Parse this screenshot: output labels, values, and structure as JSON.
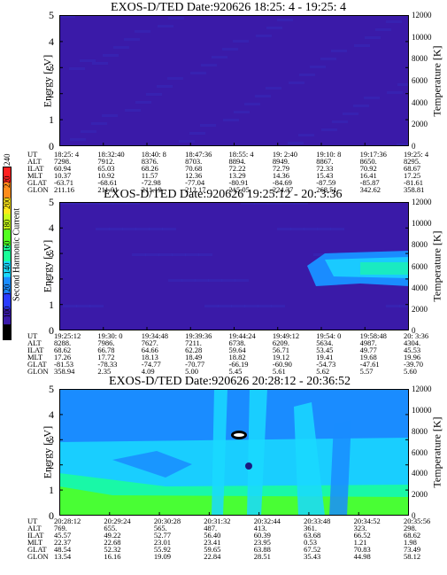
{
  "panels": [
    {
      "title": "EXOS-D/TED   Date:920626   18:25: 4 - 19:25: 4",
      "y_label": "Energy [eV]",
      "right_label": "Temperature [K]",
      "y_ticks": [
        "5",
        "4",
        "3",
        "2",
        "1",
        "0"
      ],
      "right_ticks": [
        "12000",
        "10000",
        "8000",
        "6000",
        "4000",
        "2000",
        "0"
      ],
      "rows": [
        {
          "label": "UT",
          "values": [
            "18:25: 4",
            "18:32:40",
            "18:40: 8",
            "18:47:36",
            "18:55: 4",
            "19: 2:40",
            "19:10: 8",
            "19:17:36",
            "19:25: 4"
          ]
        },
        {
          "label": "ALT",
          "values": [
            "7298.",
            "7912.",
            "8376.",
            "8703.",
            "8894.",
            "8949.",
            "8867.",
            "8650.",
            "8295."
          ]
        },
        {
          "label": "ILAT",
          "values": [
            "60.94",
            "65.03",
            "68.26",
            "70.68",
            "72.22",
            "72.79",
            "72.33",
            "70.92",
            "68.67"
          ]
        },
        {
          "label": "MLT",
          "values": [
            "10.37",
            "10.92",
            "11.57",
            "12.36",
            "13.29",
            "14.36",
            "15.43",
            "16.41",
            "17.25"
          ]
        },
        {
          "label": "GLAT",
          "values": [
            "-63.71",
            "-68.61",
            "-72.98",
            "-77.04",
            "-80.91",
            "-84.69",
            "-87.59",
            "-85.87",
            "-81.61"
          ]
        },
        {
          "label": "GLON",
          "values": [
            "211.16",
            "211.01",
            "211.19",
            "212.17",
            "215.05",
            "224.37",
            "268.51",
            "342.62",
            "358.81"
          ]
        }
      ]
    },
    {
      "title": "EXOS-D/TED   Date:920626   19:25:12 - 20: 3:36",
      "y_label": "Energy [eV]",
      "right_label": "Temperature [K]",
      "y_ticks": [
        "5",
        "4",
        "3",
        "2",
        "1",
        "0"
      ],
      "right_ticks": [
        "12000",
        "10000",
        "8000",
        "6000",
        "4000",
        "2000",
        "0"
      ],
      "rows": [
        {
          "label": "UT",
          "values": [
            "19:25:12",
            "19:30: 0",
            "19:34:48",
            "19:39:36",
            "19:44:24",
            "19:49:12",
            "19:54: 0",
            "19:58:48",
            "20: 3:36"
          ]
        },
        {
          "label": "ALT",
          "values": [
            "8288.",
            "7986.",
            "7627.",
            "7211.",
            "6738.",
            "6209.",
            "5634.",
            "4987.",
            "4304."
          ]
        },
        {
          "label": "ILAT",
          "values": [
            "68.62",
            "66.78",
            "64.66",
            "62.28",
            "59.64",
            "56.71",
            "53.45",
            "49.77",
            "45.53"
          ]
        },
        {
          "label": "MLT",
          "values": [
            "17.26",
            "17.72",
            "18.13",
            "18.49",
            "18.82",
            "19.12",
            "19.41",
            "19.68",
            "19.96"
          ]
        },
        {
          "label": "GLAT",
          "values": [
            "-81.53",
            "-78.33",
            "-74.77",
            "-70.77",
            "-66.19",
            "-60.90",
            "-54.73",
            "-47.61",
            "-39.70"
          ]
        },
        {
          "label": "GLON",
          "values": [
            "358.94",
            "2.35",
            "4.09",
            "5.00",
            "5.45",
            "5.61",
            "5.62",
            "5.57",
            "5.60"
          ]
        }
      ]
    },
    {
      "title": "EXOS-D/TED   Date:920626   20:28:12 - 20:36:52",
      "y_label": "Energy [eV]",
      "right_label": "Temperature [K]",
      "y_ticks": [
        "5",
        "4",
        "3",
        "2",
        "1",
        "0"
      ],
      "right_ticks": [
        "12000",
        "10000",
        "8000",
        "6000",
        "4000",
        "2000",
        "0"
      ],
      "rows": [
        {
          "label": "UT",
          "values": [
            "20:28:12",
            "20:29:24",
            "20:30:28",
            "20:31:32",
            "20:32:44",
            "20:33:48",
            "20:34:52",
            "20:35:56"
          ]
        },
        {
          "label": "ALT",
          "values": [
            "769.",
            "655.",
            "565.",
            "487.",
            "413.",
            "361.",
            "323.",
            "298."
          ]
        },
        {
          "label": "ILAT",
          "values": [
            "45.57",
            "49.22",
            "52.77",
            "56.40",
            "60.39",
            "63.68",
            "66.52",
            "68.62"
          ]
        },
        {
          "label": "MLT",
          "values": [
            "22.37",
            "22.68",
            "23.01",
            "23.41",
            "23.95",
            "0.53",
            "1.21",
            "1.98"
          ]
        },
        {
          "label": "GLAT",
          "values": [
            "48.54",
            "52.32",
            "55.92",
            "59.65",
            "63.88",
            "67.52",
            "70.83",
            "73.49"
          ]
        },
        {
          "label": "GLON",
          "values": [
            "13.54",
            "16.16",
            "19.09",
            "22.84",
            "28.51",
            "35.43",
            "44.98",
            "58.12"
          ]
        }
      ]
    }
  ],
  "colorbar": {
    "label": "Second Harmonic Current",
    "ticks": [
      "240",
      "220",
      "200",
      "180",
      "160",
      "140",
      "120",
      "100",
      "80"
    ],
    "colors": [
      "#ff2020",
      "#ff8c1a",
      "#ffe81a",
      "#c8ff1a",
      "#52ff20",
      "#1aff98",
      "#1ad9ff",
      "#1a8cff",
      "#2a3cff",
      "#3a1aa8",
      "#000000"
    ]
  },
  "chart_data": [
    {
      "type": "heatmap",
      "title": "EXOS-D/TED   Date:920626   18:25: 4 - 19:25: 4",
      "ylabel": "Energy [eV]",
      "ylim": [
        0,
        5
      ],
      "y2label": "Temperature [K]",
      "y2lim": [
        0,
        12000
      ],
      "x": [
        "18:25: 4",
        "18:32:40",
        "18:40: 8",
        "18:47:36",
        "18:55: 4",
        "19: 2:40",
        "19:10: 8",
        "19:17:36",
        "19:25: 4"
      ],
      "zlabel": "Second Harmonic Current",
      "zlim": [
        80,
        240
      ],
      "level": "uniform background ~100"
    },
    {
      "type": "heatmap",
      "title": "EXOS-D/TED   Date:920626   19:25:12 - 20: 3:36",
      "ylabel": "Energy [eV]",
      "ylim": [
        0,
        5
      ],
      "y2label": "Temperature [K]",
      "y2lim": [
        0,
        12000
      ],
      "x": [
        "19:25:12",
        "19:30: 0",
        "19:34:48",
        "19:39:36",
        "19:44:24",
        "19:49:12",
        "19:54: 0",
        "19:58:48",
        "20: 3:36"
      ],
      "zlabel": "Second Harmonic Current",
      "zlim": [
        80,
        240
      ],
      "features": [
        {
          "x_from": "19:53",
          "x_to": "20: 3:36",
          "y_from": 1.8,
          "y_to": 2.9,
          "level": 150
        }
      ]
    },
    {
      "type": "heatmap",
      "title": "EXOS-D/TED   Date:920626   20:28:12 - 20:36:52",
      "ylabel": "Energy [eV]",
      "ylim": [
        0,
        5
      ],
      "y2label": "Temperature [K]",
      "y2lim": [
        0,
        12000
      ],
      "x": [
        "20:28:12",
        "20:29:24",
        "20:30:28",
        "20:31:32",
        "20:32:44",
        "20:33:48",
        "20:34:52",
        "20:35:56"
      ],
      "zlabel": "Second Harmonic Current",
      "zlim": [
        80,
        240
      ],
      "level": "high ~130-160 across band"
    }
  ]
}
